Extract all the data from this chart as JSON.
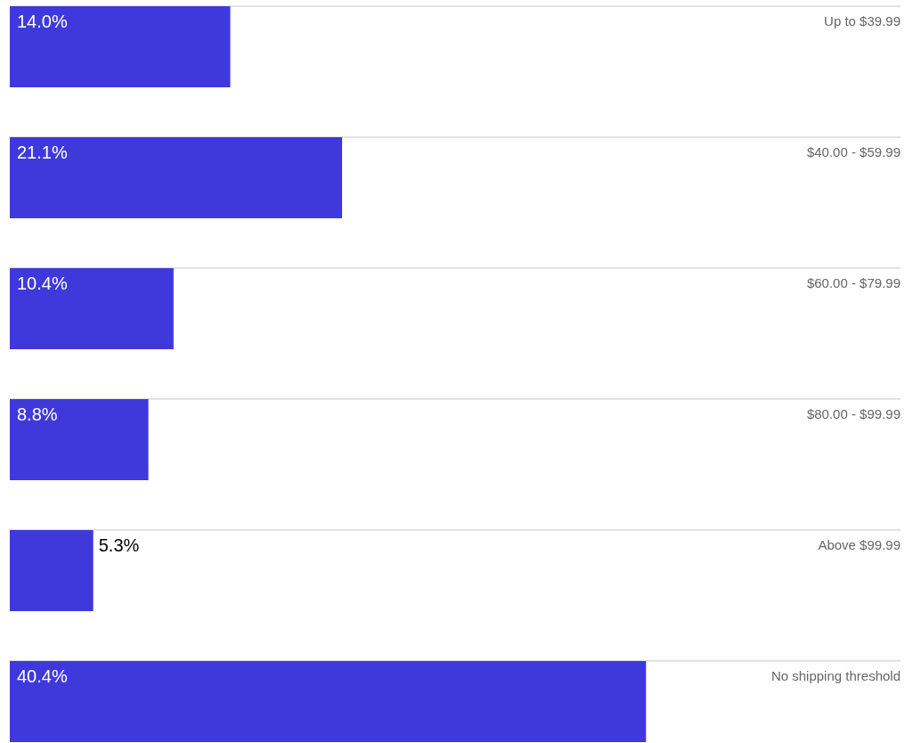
{
  "chart_data": {
    "type": "bar",
    "orientation": "horizontal",
    "grid": "y",
    "categories": [
      "Up to $39.99",
      "$40.00 - $59.99",
      "$60.00 - $79.99",
      "$80.00 - $99.99",
      "Above $99.99",
      "No shipping threshold"
    ],
    "series": [
      {
        "color": "#3f39dc",
        "values": [
          14.0,
          21.1,
          10.4,
          8.8,
          5.3,
          40.4
        ],
        "value_labels": [
          "14.0%",
          "21.1%",
          "10.4%",
          "8.8%",
          "5.3%",
          "40.4%"
        ]
      }
    ]
  }
}
